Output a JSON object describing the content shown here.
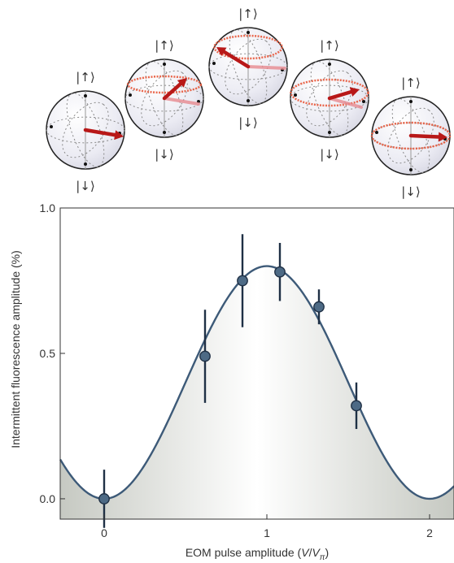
{
  "chart_data": {
    "type": "scatter",
    "xlabel": "EOM pulse amplitude (V/Vπ)",
    "xlabel_parts": {
      "prefix": "EOM pulse amplitude (",
      "var": "V",
      "slash": "/",
      "var2": "V",
      "sub": "π",
      "suffix": ")"
    },
    "ylabel": "Intermittent fluorescence amplitude (%)",
    "xlim": [
      -0.27,
      2.15
    ],
    "ylim": [
      -0.07,
      1.0
    ],
    "x_ticks": [
      0,
      1,
      2
    ],
    "x_tick_labels": [
      "0",
      "1",
      "2"
    ],
    "y_ticks": [
      0.0,
      0.5,
      1.0
    ],
    "y_tick_labels": [
      "0.0",
      "0.5",
      "1.0"
    ],
    "grid": false,
    "series": [
      {
        "points": [
          {
            "x": 0.0,
            "y": 0.0,
            "y_low": -0.1,
            "y_high": 0.1
          },
          {
            "x": 0.62,
            "y": 0.49,
            "y_low": 0.33,
            "y_high": 0.65
          },
          {
            "x": 0.85,
            "y": 0.75,
            "y_low": 0.59,
            "y_high": 0.91
          },
          {
            "x": 1.08,
            "y": 0.78,
            "y_low": 0.68,
            "y_high": 0.88
          },
          {
            "x": 1.32,
            "y": 0.66,
            "y_low": 0.6,
            "y_high": 0.72
          },
          {
            "x": 1.55,
            "y": 0.32,
            "y_low": 0.24,
            "y_high": 0.4
          }
        ]
      }
    ],
    "fit": {
      "amplitude": 0.8,
      "period": 2.0
    }
  },
  "spheres": [
    {
      "top": "|↑⟩",
      "bottom": "|↓⟩"
    },
    {
      "top": "|↑⟩",
      "bottom": "|↓⟩"
    },
    {
      "top": "|↑⟩",
      "bottom": "|↓⟩"
    },
    {
      "top": "|↑⟩",
      "bottom": "|↓⟩"
    },
    {
      "top": "|↑⟩",
      "bottom": "|↓⟩"
    }
  ],
  "colors": {
    "fit_line": "#3d5a78",
    "marker": "#4d6a85",
    "errorbar": "#1f3045",
    "arrow": "#b81818",
    "ring": "#e8583a",
    "sphere_fill": "#f1f1f8"
  }
}
